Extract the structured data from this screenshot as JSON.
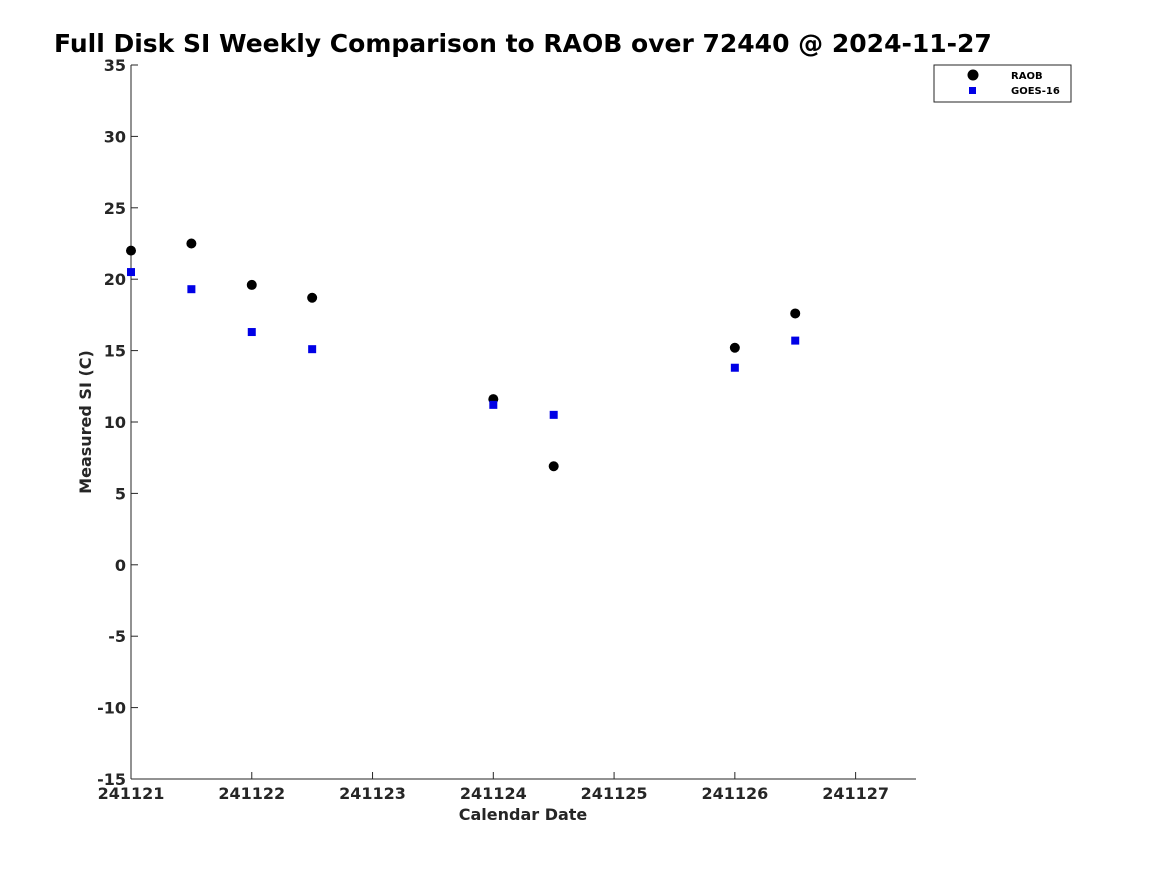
{
  "chart_data": {
    "type": "scatter",
    "title": "Full Disk SI Weekly Comparison to RAOB over 72440 @ 2024-11-27",
    "xlabel": "Calendar Date",
    "ylabel": "Measured SI (C)",
    "xlim": [
      "2024-11-21T00:00",
      "2024-11-27T12:00"
    ],
    "ylim": [
      -15,
      35
    ],
    "x_ticks": [
      {
        "value": "2024-11-21",
        "label": "241121"
      },
      {
        "value": "2024-11-22",
        "label": "241122"
      },
      {
        "value": "2024-11-23",
        "label": "241123"
      },
      {
        "value": "2024-11-24",
        "label": "241124"
      },
      {
        "value": "2024-11-25",
        "label": "241125"
      },
      {
        "value": "2024-11-26",
        "label": "241126"
      },
      {
        "value": "2024-11-27",
        "label": "241127"
      }
    ],
    "y_ticks": [
      {
        "value": 35,
        "label": "35"
      },
      {
        "value": 30,
        "label": "30"
      },
      {
        "value": 25,
        "label": "25"
      },
      {
        "value": 20,
        "label": "20"
      },
      {
        "value": 15,
        "label": "15"
      },
      {
        "value": 10,
        "label": "10"
      },
      {
        "value": 5,
        "label": "5"
      },
      {
        "value": 0,
        "label": "0"
      },
      {
        "value": -5,
        "label": "-5"
      },
      {
        "value": -10,
        "label": "-10"
      },
      {
        "value": -15,
        "label": "-15"
      }
    ],
    "grid": false,
    "legend_position": "top-right",
    "series": [
      {
        "name": "RAOB",
        "marker": "circle",
        "color": "#000000",
        "points": [
          {
            "x": "2024-11-21T00:00",
            "y": 22.0
          },
          {
            "x": "2024-11-21T12:00",
            "y": 22.5
          },
          {
            "x": "2024-11-22T00:00",
            "y": 19.6
          },
          {
            "x": "2024-11-22T12:00",
            "y": 18.7
          },
          {
            "x": "2024-11-24T00:00",
            "y": 11.6
          },
          {
            "x": "2024-11-24T12:00",
            "y": 6.9
          },
          {
            "x": "2024-11-26T00:00",
            "y": 15.2
          },
          {
            "x": "2024-11-26T12:00",
            "y": 17.6
          }
        ]
      },
      {
        "name": "GOES-16",
        "marker": "square",
        "color": "#0000e6",
        "points": [
          {
            "x": "2024-11-21T00:00",
            "y": 20.5
          },
          {
            "x": "2024-11-21T12:00",
            "y": 19.3
          },
          {
            "x": "2024-11-22T00:00",
            "y": 16.3
          },
          {
            "x": "2024-11-22T12:00",
            "y": 15.1
          },
          {
            "x": "2024-11-24T00:00",
            "y": 11.2
          },
          {
            "x": "2024-11-24T12:00",
            "y": 10.5
          },
          {
            "x": "2024-11-26T00:00",
            "y": 13.8
          },
          {
            "x": "2024-11-26T12:00",
            "y": 15.7
          }
        ]
      }
    ]
  }
}
